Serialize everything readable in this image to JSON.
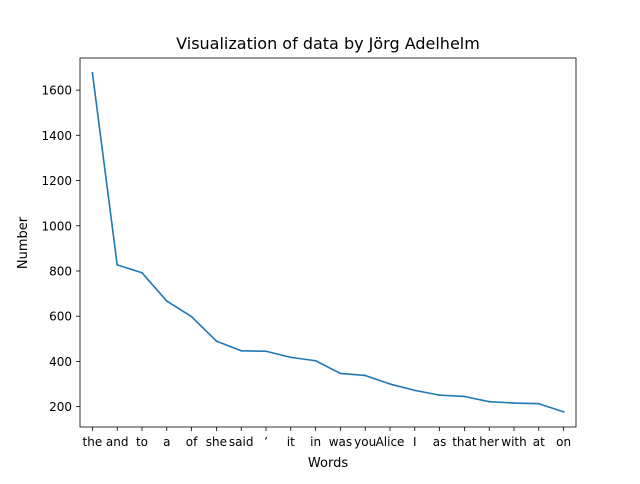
{
  "chart_data": {
    "type": "line",
    "title": "Visualization of data by Jörg Adelhelm",
    "xlabel": "Words",
    "ylabel": "Number",
    "categories": [
      "the",
      "and",
      "to",
      "a",
      "of",
      "she",
      "said",
      "’",
      "it",
      "in",
      "was",
      "you",
      "Alice",
      "I",
      "as",
      "that",
      "her",
      "with",
      "at",
      "on"
    ],
    "values": [
      1676,
      827,
      792,
      667,
      598,
      490,
      447,
      445,
      418,
      403,
      347,
      338,
      300,
      272,
      251,
      245,
      222,
      216,
      213,
      177
    ],
    "ylim": [
      110,
      1742
    ],
    "yticks": [
      200,
      400,
      600,
      800,
      1000,
      1200,
      1400,
      1600
    ],
    "grid": false,
    "line_color": "#1f77b4"
  }
}
